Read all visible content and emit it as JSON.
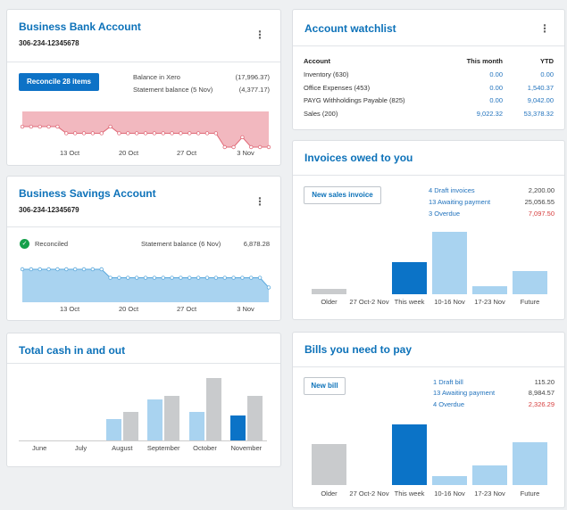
{
  "bank": {
    "title": "Business Bank Account",
    "account_number": "306-234-12345678",
    "reconcile_label": "Reconcile 28 items",
    "balance_xero_label": "Balance in Xero",
    "balance_xero_value": "(17,996.37)",
    "statement_label": "Statement balance (5 Nov)",
    "statement_value": "(4,377.17)",
    "x_ticks": [
      "13 Oct",
      "20 Oct",
      "27 Oct",
      "3 Nov"
    ],
    "series": [
      0.62,
      0.62,
      0.62,
      0.62,
      0.62,
      0.42,
      0.42,
      0.42,
      0.42,
      0.42,
      0.62,
      0.42,
      0.42,
      0.42,
      0.42,
      0.42,
      0.42,
      0.42,
      0.42,
      0.42,
      0.42,
      0.42,
      0.42,
      0.0,
      0.0,
      0.3,
      0.0,
      0.0,
      0.0
    ]
  },
  "savings": {
    "title": "Business Savings Account",
    "account_number": "306-234-12345679",
    "reconciled_label": "Reconciled",
    "statement_label": "Statement balance (6 Nov)",
    "statement_value": "6,878.28",
    "x_ticks": [
      "13 Oct",
      "20 Oct",
      "27 Oct",
      "3 Nov"
    ],
    "series": [
      1,
      1,
      1,
      1,
      1,
      1,
      1,
      1,
      1,
      1,
      0.72,
      0.72,
      0.72,
      0.72,
      0.72,
      0.72,
      0.72,
      0.72,
      0.72,
      0.72,
      0.72,
      0.72,
      0.72,
      0.72,
      0.72,
      0.72,
      0.72,
      0.72,
      0.4
    ]
  },
  "cash": {
    "title": "Total cash in and out",
    "categories": [
      "June",
      "July",
      "August",
      "September",
      "October",
      "November"
    ],
    "cash_in": [
      0,
      0,
      0.34,
      0.66,
      0.46,
      0.4
    ],
    "cash_out": [
      0,
      0,
      0.46,
      0.72,
      1.0,
      0.72
    ],
    "highlight_index": 5
  },
  "watchlist": {
    "title": "Account watchlist",
    "col_account": "Account",
    "col_month": "This month",
    "col_ytd": "YTD",
    "rows": [
      {
        "account": "Inventory (630)",
        "month": "0.00",
        "ytd": "0.00"
      },
      {
        "account": "Office Expenses (453)",
        "month": "0.00",
        "ytd": "1,540.37"
      },
      {
        "account": "PAYG Withholdings Payable (825)",
        "month": "0.00",
        "ytd": "9,042.00"
      },
      {
        "account": "Sales (200)",
        "month": "9,022.32",
        "ytd": "53,378.32"
      }
    ]
  },
  "invoices": {
    "title": "Invoices owed to you",
    "button_label": "New sales invoice",
    "draft_label": "4 Draft invoices",
    "draft_value": "2,200.00",
    "awaiting_label": "13 Awaiting payment",
    "awaiting_value": "25,056.55",
    "overdue_label": "3 Overdue",
    "overdue_value": "7,097.50",
    "categories": [
      "Older",
      "27 Oct-2 Nov",
      "This week",
      "10-16 Nov",
      "17-23 Nov",
      "Future"
    ],
    "values": [
      0.08,
      0,
      0.52,
      1.0,
      0.13,
      0.37
    ],
    "kinds": [
      "gray",
      "none",
      "dark",
      "light",
      "light",
      "light"
    ]
  },
  "bills": {
    "title": "Bills you need to pay",
    "button_label": "New bill",
    "draft_label": "1 Draft bill",
    "draft_value": "115.20",
    "awaiting_label": "13 Awaiting payment",
    "awaiting_value": "8,984.57",
    "overdue_label": "4 Overdue",
    "overdue_value": "2,326.29",
    "categories": [
      "Older",
      "27 Oct-2 Nov",
      "This week",
      "10-16 Nov",
      "17-23 Nov",
      "Future"
    ],
    "values": [
      0.68,
      0,
      1.0,
      0.15,
      0.32,
      0.7
    ],
    "kinds": [
      "gray",
      "none",
      "dark",
      "light",
      "light",
      "light"
    ]
  },
  "colors": {
    "accent": "#0d72b9",
    "bar_dark": "#0b73c7",
    "bar_light": "#a9d3f0",
    "bar_gray": "#c9cbcd",
    "negative_fill": "#f2b8bf",
    "negative_line": "#e06a78",
    "savings_fill": "#a9d3f0",
    "savings_line": "#5aa8dc",
    "overdue": "#d63d3d",
    "reconciled": "#14a04a"
  }
}
